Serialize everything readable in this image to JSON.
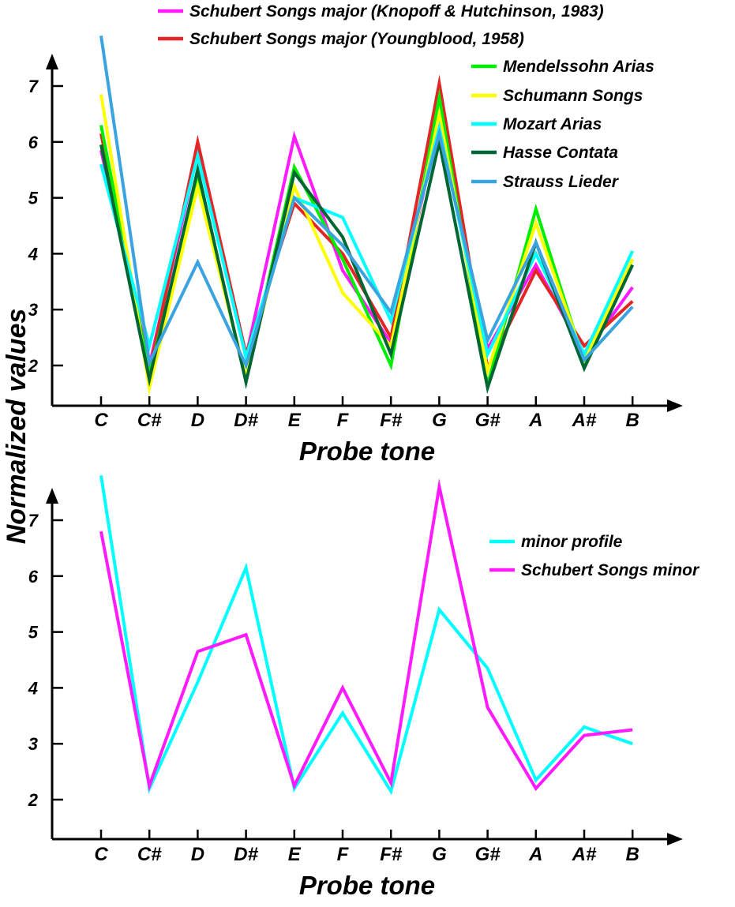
{
  "chart_data": [
    {
      "type": "line",
      "title": "",
      "xlabel": "Probe tone",
      "ylabel": "Normalized values",
      "categories": [
        "C",
        "C#",
        "D",
        "D#",
        "E",
        "F",
        "F#",
        "G",
        "G#",
        "A",
        "A#",
        "B"
      ],
      "yticks": [
        2,
        3,
        4,
        5,
        6,
        7
      ],
      "ylim": [
        1.3,
        8.2
      ],
      "grid": false,
      "legend_position": "top-right",
      "series": [
        {
          "name": "Schubert Songs major (Knopoff & Hutchinson, 1983)",
          "color": "#ff1aff",
          "values": [
            5.85,
            2.0,
            5.8,
            2.15,
            6.1,
            3.7,
            2.4,
            6.4,
            2.3,
            3.8,
            2.2,
            3.4
          ]
        },
        {
          "name": "Schubert Songs major (Youngblood, 1958)",
          "color": "#e32526",
          "values": [
            6.15,
            1.9,
            6.0,
            2.2,
            4.9,
            4.0,
            2.5,
            7.05,
            1.95,
            3.7,
            2.35,
            3.15
          ]
        },
        {
          "name": "Mendelssohn Arias",
          "color": "#00ee00",
          "values": [
            6.3,
            1.85,
            5.3,
            1.75,
            5.55,
            3.9,
            2.0,
            6.8,
            1.65,
            4.8,
            2.05,
            3.9
          ]
        },
        {
          "name": "Schumann Songs",
          "color": "#ffff00",
          "values": [
            6.85,
            1.6,
            5.2,
            1.8,
            5.2,
            3.3,
            2.35,
            6.5,
            1.9,
            4.55,
            2.1,
            3.9
          ]
        },
        {
          "name": "Mozart Arias",
          "color": "#00ffff",
          "values": [
            5.6,
            2.35,
            5.75,
            2.15,
            5.0,
            4.65,
            2.8,
            6.25,
            2.2,
            4.0,
            2.2,
            4.05
          ]
        },
        {
          "name": "Hasse Contata",
          "color": "#006633",
          "values": [
            5.95,
            1.75,
            5.5,
            1.7,
            5.45,
            4.3,
            2.2,
            6.0,
            1.6,
            4.2,
            1.95,
            3.8
          ]
        },
        {
          "name": "Strauss Lieder",
          "color": "#3aa3e0",
          "values": [
            7.9,
            2.05,
            3.85,
            2.0,
            5.0,
            4.15,
            2.95,
            6.15,
            2.45,
            4.2,
            2.1,
            3.05
          ]
        }
      ]
    },
    {
      "type": "line",
      "title": "",
      "xlabel": "Probe tone",
      "ylabel": "Normalized values",
      "categories": [
        "C",
        "C#",
        "D",
        "D#",
        "E",
        "F",
        "F#",
        "G",
        "G#",
        "A",
        "A#",
        "B"
      ],
      "yticks": [
        2,
        3,
        4,
        5,
        6,
        7
      ],
      "ylim": [
        1.3,
        8.2
      ],
      "grid": false,
      "legend_position": "top-right",
      "series": [
        {
          "name": "minor profile",
          "color": "#00ffff",
          "values": [
            7.8,
            2.2,
            4.1,
            6.15,
            2.2,
            3.55,
            2.15,
            5.4,
            4.35,
            2.35,
            3.3,
            3.0
          ]
        },
        {
          "name": "Schubert Songs minor",
          "color": "#ff1aff",
          "values": [
            6.8,
            2.25,
            4.65,
            4.95,
            2.25,
            4.0,
            2.3,
            7.6,
            3.65,
            2.2,
            3.15,
            3.25
          ]
        }
      ]
    }
  ]
}
